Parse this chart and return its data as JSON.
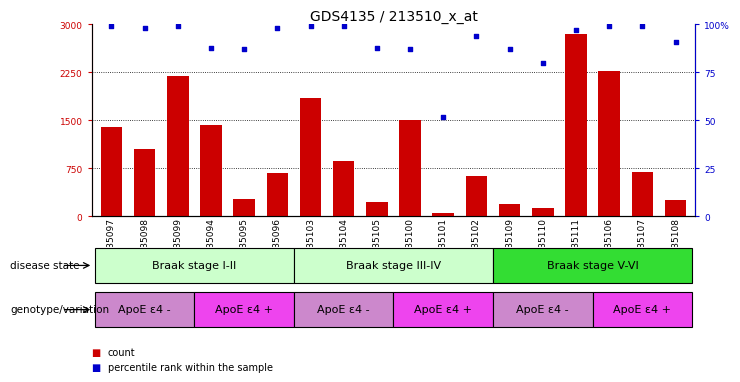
{
  "title": "GDS4135 / 213510_x_at",
  "samples": [
    "GSM735097",
    "GSM735098",
    "GSM735099",
    "GSM735094",
    "GSM735095",
    "GSM735096",
    "GSM735103",
    "GSM735104",
    "GSM735105",
    "GSM735100",
    "GSM735101",
    "GSM735102",
    "GSM735109",
    "GSM735110",
    "GSM735111",
    "GSM735106",
    "GSM735107",
    "GSM735108"
  ],
  "counts": [
    1400,
    1050,
    2200,
    1430,
    280,
    680,
    1850,
    870,
    230,
    1510,
    55,
    640,
    200,
    130,
    2850,
    2280,
    700,
    260
  ],
  "percentiles": [
    99,
    98,
    99,
    88,
    87,
    98,
    99,
    99,
    88,
    87,
    52,
    94,
    87,
    80,
    97,
    99,
    99,
    91
  ],
  "ylim_left": [
    0,
    3000
  ],
  "ylim_right": [
    0,
    100
  ],
  "yticks_left": [
    0,
    750,
    1500,
    2250,
    3000
  ],
  "yticks_right": [
    0,
    25,
    50,
    75,
    100
  ],
  "bar_color": "#cc0000",
  "dot_color": "#0000cc",
  "grid_color": "#000000",
  "disease_state_groups": [
    {
      "label": "Braak stage I-II",
      "start": 0,
      "end": 6,
      "color": "#ccffcc"
    },
    {
      "label": "Braak stage III-IV",
      "start": 6,
      "end": 12,
      "color": "#ccffcc"
    },
    {
      "label": "Braak stage V-VI",
      "start": 12,
      "end": 18,
      "color": "#33dd33"
    }
  ],
  "genotype_groups": [
    {
      "label": "ApoE ε4 -",
      "start": 0,
      "end": 3,
      "color": "#cc88cc"
    },
    {
      "label": "ApoE ε4 +",
      "start": 3,
      "end": 6,
      "color": "#ee44ee"
    },
    {
      "label": "ApoE ε4 -",
      "start": 6,
      "end": 9,
      "color": "#cc88cc"
    },
    {
      "label": "ApoE ε4 +",
      "start": 9,
      "end": 12,
      "color": "#ee44ee"
    },
    {
      "label": "ApoE ε4 -",
      "start": 12,
      "end": 15,
      "color": "#cc88cc"
    },
    {
      "label": "ApoE ε4 +",
      "start": 15,
      "end": 18,
      "color": "#ee44ee"
    }
  ],
  "legend_count_label": "count",
  "legend_pct_label": "percentile rank within the sample",
  "title_fontsize": 10,
  "tick_fontsize": 6.5,
  "label_fontsize": 7.5,
  "annot_fontsize": 8,
  "legend_fontsize": 7
}
